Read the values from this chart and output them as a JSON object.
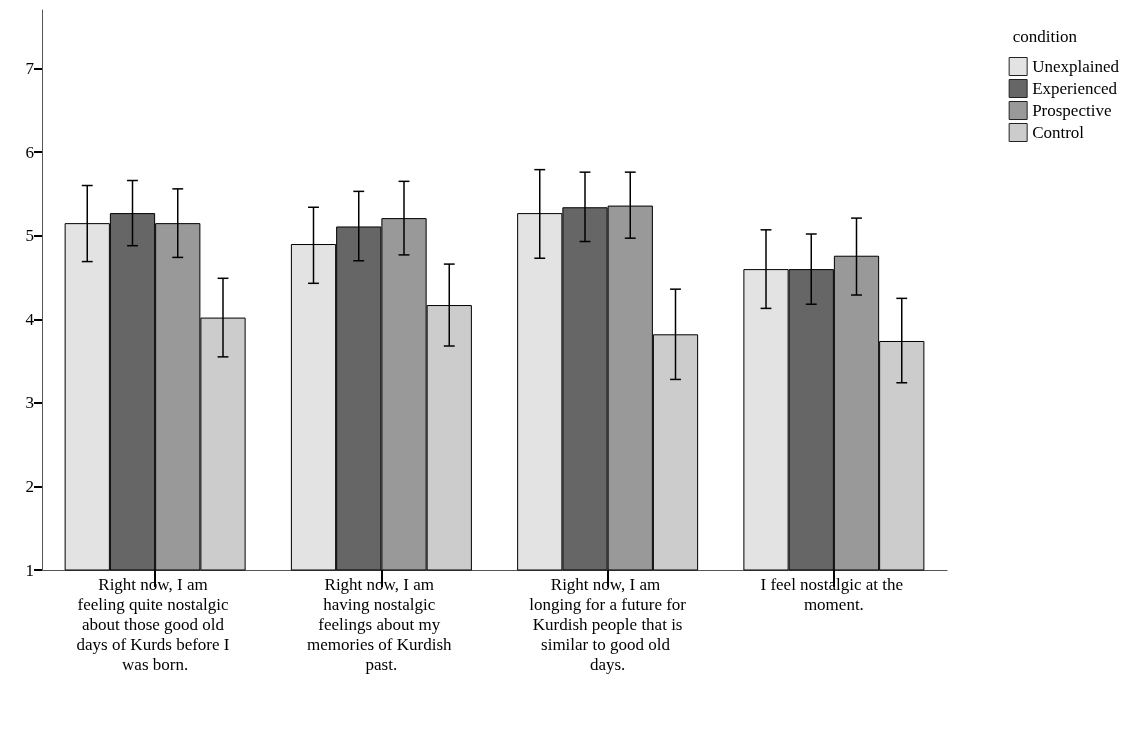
{
  "chart_data": {
    "type": "bar",
    "legend_title": "condition",
    "categories": [
      "Right now, I am feeling quite nostalgic about those good old days of Kurds before I was born.",
      "Right now, I am having nostalgic feelings about my memories of Kurdish past.",
      "Right now, I am longing for a future for Kurdish people that is similar to good old days.",
      "I feel nostalgic at the moment."
    ],
    "series": [
      {
        "name": "Unexplained",
        "color": "#e3e3e3",
        "values": [
          5.15,
          4.9,
          5.27,
          4.6
        ],
        "errors": [
          [
            4.69,
            5.6
          ],
          [
            4.43,
            5.34
          ],
          [
            4.73,
            5.79
          ],
          [
            4.13,
            5.07
          ]
        ]
      },
      {
        "name": "Experienced",
        "color": "#666666",
        "values": [
          5.27,
          5.11,
          5.34,
          4.6
        ],
        "errors": [
          [
            4.88,
            5.66
          ],
          [
            4.7,
            5.53
          ],
          [
            4.93,
            5.76
          ],
          [
            4.18,
            5.02
          ]
        ]
      },
      {
        "name": "Prospective",
        "color": "#999999",
        "values": [
          5.15,
          5.21,
          5.36,
          4.76
        ],
        "errors": [
          [
            4.74,
            5.56
          ],
          [
            4.77,
            5.65
          ],
          [
            4.97,
            5.76
          ],
          [
            4.29,
            5.21
          ]
        ]
      },
      {
        "name": "Control",
        "color": "#cccccc",
        "values": [
          4.02,
          4.17,
          3.82,
          3.74
        ],
        "errors": [
          [
            3.55,
            4.49
          ],
          [
            3.68,
            4.66
          ],
          [
            3.28,
            4.36
          ],
          [
            3.24,
            4.25
          ]
        ]
      }
    ],
    "ylim": [
      1,
      7.7
    ],
    "yticks": [
      1,
      2,
      3,
      4,
      5,
      6,
      7
    ],
    "grid": false,
    "legend": "top right"
  }
}
